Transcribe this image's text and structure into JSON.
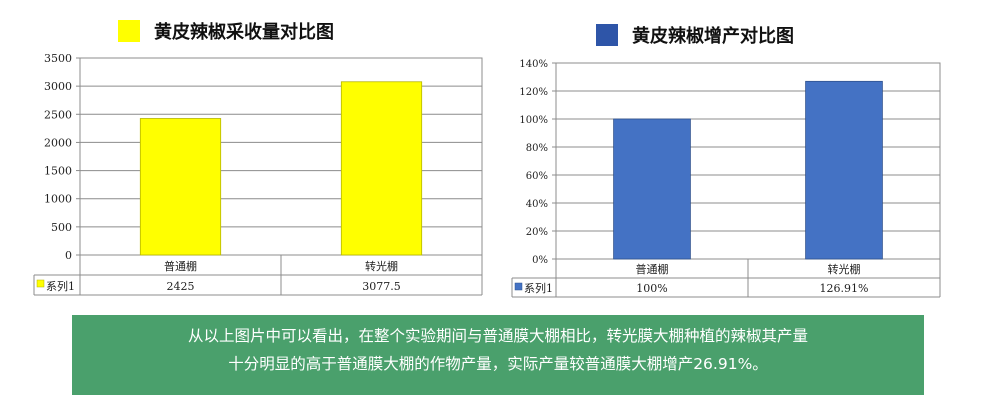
{
  "colors": {
    "left_bar": "#ffff00",
    "right_bar": "#4472c4",
    "note_bg": "#4aa06c"
  },
  "chart_data": [
    {
      "type": "bar",
      "title": "黄皮辣椒采收量对比图",
      "categories": [
        "普通棚",
        "转光棚"
      ],
      "series": [
        {
          "name": "系列1",
          "values": [
            2425,
            3077.5
          ]
        }
      ],
      "value_labels": [
        "2425",
        "3077.5"
      ],
      "ylim": [
        0,
        3500
      ],
      "yticks": [
        0,
        500,
        1000,
        1500,
        2000,
        2500,
        3000,
        3500
      ],
      "ytick_labels": [
        "0",
        "500",
        "1000",
        "1500",
        "2000",
        "2500",
        "3000",
        "3500"
      ],
      "grid": true,
      "legend": "data-table-left",
      "color": "#ffff00"
    },
    {
      "type": "bar",
      "title": "黄皮辣椒增产对比图",
      "categories": [
        "普通棚",
        "转光棚"
      ],
      "series": [
        {
          "name": "系列1",
          "values": [
            100,
            126.91
          ]
        }
      ],
      "value_labels": [
        "100%",
        "126.91%"
      ],
      "ylim": [
        0,
        140
      ],
      "yticks": [
        0,
        20,
        40,
        60,
        80,
        100,
        120,
        140
      ],
      "ytick_labels": [
        "0%",
        "20%",
        "40%",
        "60%",
        "80%",
        "100%",
        "120%",
        "140%"
      ],
      "grid": true,
      "legend": "data-table-left",
      "color": "#4472c4"
    }
  ],
  "note": {
    "line1": "从以上图片中可以看出，在整个实验期间与普通膜大棚相比，转光膜大棚种植的辣椒其产量",
    "line2": "十分明显的高于普通膜大棚的作物产量，实际产量较普通膜大棚增产26.91%。"
  }
}
